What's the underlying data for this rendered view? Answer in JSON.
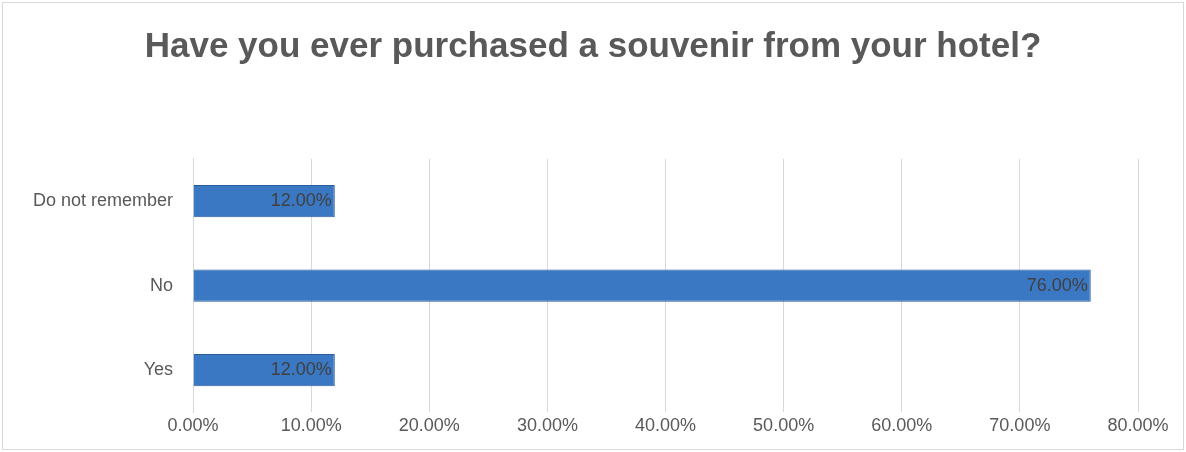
{
  "chart_data": {
    "type": "bar",
    "orientation": "horizontal",
    "title": "Have you ever purchased a souvenir from your hotel?",
    "categories": [
      "Do not remember",
      "No",
      "Yes"
    ],
    "values": [
      12,
      76,
      12
    ],
    "color": "#3a78c4",
    "value_labels": [
      "12.00%",
      "76.00%",
      "12.00%"
    ],
    "xlim": [
      0,
      80
    ],
    "xticks": [
      {
        "value": 0,
        "label": "0.00%"
      },
      {
        "value": 10,
        "label": "10.00%"
      },
      {
        "value": 20,
        "label": "20.00%"
      },
      {
        "value": 30,
        "label": "30.00%"
      },
      {
        "value": 40,
        "label": "40.00%"
      },
      {
        "value": 50,
        "label": "50.00%"
      },
      {
        "value": 60,
        "label": "60.00%"
      },
      {
        "value": 70,
        "label": "70.00%"
      },
      {
        "value": 80,
        "label": "80.00%"
      }
    ],
    "grid": "x",
    "legend": false
  }
}
